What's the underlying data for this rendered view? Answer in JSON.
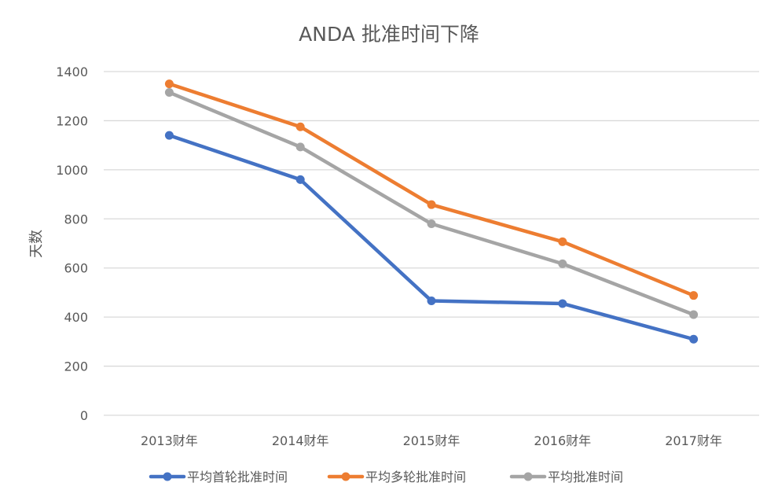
{
  "chart_data": {
    "type": "line",
    "title": "ANDA 批准时间下降",
    "xlabel": "",
    "ylabel": "天数",
    "ylim": [
      0,
      1400
    ],
    "yticks": [
      0,
      200,
      400,
      600,
      800,
      1000,
      1200,
      1400
    ],
    "categories": [
      "2013财年",
      "2014财年",
      "2015财年",
      "2016财年",
      "2017财年"
    ],
    "grid": true,
    "legend_position": "bottom",
    "series": [
      {
        "name": "平均首轮批准时间",
        "color": "#4472C4",
        "values": [
          1140,
          960,
          466,
          455,
          310
        ]
      },
      {
        "name": "平均多轮批准时间",
        "color": "#ED7D31",
        "values": [
          1350,
          1175,
          858,
          707,
          488
        ]
      },
      {
        "name": "平均批准时间",
        "color": "#A5A5A5",
        "values": [
          1315,
          1093,
          780,
          617,
          410
        ]
      }
    ]
  }
}
